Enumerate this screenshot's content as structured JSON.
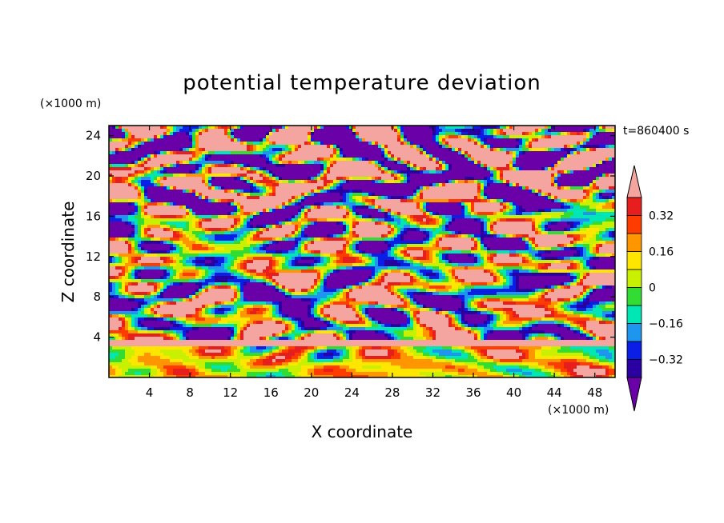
{
  "chart_data": {
    "type": "heatmap",
    "title": "potential temperature deviation",
    "xlabel": "X coordinate",
    "ylabel": "Z coordinate",
    "x_units": "(×1000 m)",
    "y_units": "(×1000 m)",
    "time_label": "t=860400 s",
    "xlim": [
      0,
      50
    ],
    "ylim": [
      0,
      25
    ],
    "x_ticks": [
      4,
      8,
      12,
      16,
      20,
      24,
      28,
      32,
      36,
      40,
      44,
      48
    ],
    "y_ticks": [
      4,
      8,
      12,
      16,
      20,
      24
    ],
    "colorbar": {
      "levels": [
        -0.4,
        -0.32,
        -0.24,
        -0.16,
        -0.08,
        0,
        0.08,
        0.16,
        0.24,
        0.32,
        0.4
      ],
      "labels": [
        {
          "value": 0.32,
          "text": "0.32"
        },
        {
          "value": 0.16,
          "text": "0.16"
        },
        {
          "value": 0,
          "text": "0"
        },
        {
          "value": -0.16,
          "text": "−0.16"
        },
        {
          "value": -0.32,
          "text": "−0.32"
        }
      ],
      "colors": [
        "#6a00a8",
        "#2a00a0",
        "#0a1ee6",
        "#1e96f0",
        "#00e6b4",
        "#32dc32",
        "#c8f000",
        "#ffe600",
        "#ff9600",
        "#ff3c00",
        "#e61e1e",
        "#f5a5a0"
      ],
      "extend": "both"
    }
  }
}
